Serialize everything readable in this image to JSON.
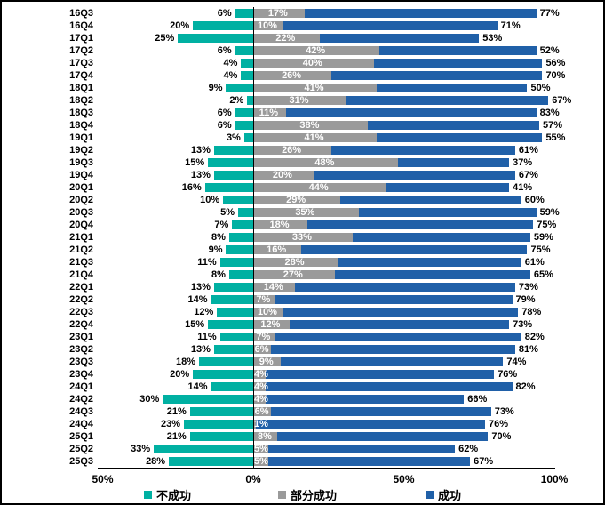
{
  "chart_data": {
    "type": "bar",
    "variant": "horizontal-diverging-stacked",
    "value_suffix": "%",
    "categories": [
      "16Q3",
      "16Q4",
      "17Q1",
      "17Q2",
      "17Q3",
      "17Q4",
      "18Q1",
      "18Q2",
      "18Q3",
      "18Q4",
      "19Q1",
      "19Q2",
      "19Q3",
      "19Q4",
      "20Q1",
      "20Q2",
      "20Q3",
      "20Q4",
      "21Q1",
      "21Q2",
      "21Q3",
      "21Q4",
      "22Q1",
      "22Q2",
      "22Q3",
      "22Q4",
      "23Q1",
      "23Q2",
      "23Q3",
      "23Q4",
      "24Q1",
      "24Q2",
      "24Q3",
      "24Q4",
      "25Q1",
      "25Q2",
      "25Q3"
    ],
    "series": [
      {
        "name": "不成功",
        "color": "#00B0A2",
        "direction": "left",
        "values": [
          6,
          20,
          25,
          6,
          4,
          4,
          9,
          2,
          6,
          6,
          3,
          13,
          15,
          13,
          16,
          10,
          5,
          7,
          8,
          9,
          11,
          8,
          13,
          14,
          12,
          15,
          11,
          13,
          18,
          20,
          14,
          30,
          21,
          23,
          21,
          33,
          28
        ]
      },
      {
        "name": "部分成功",
        "color": "#9A9A9A",
        "direction": "right",
        "values": [
          17,
          10,
          22,
          42,
          40,
          26,
          41,
          31,
          11,
          38,
          41,
          26,
          48,
          20,
          44,
          29,
          35,
          18,
          33,
          16,
          28,
          27,
          14,
          7,
          10,
          12,
          7,
          6,
          9,
          4,
          4,
          4,
          6,
          1,
          8,
          5,
          5
        ]
      },
      {
        "name": "成功",
        "color": "#2060A8",
        "direction": "right",
        "values": [
          77,
          71,
          53,
          52,
          56,
          70,
          50,
          67,
          83,
          57,
          55,
          61,
          37,
          67,
          41,
          60,
          59,
          75,
          59,
          75,
          61,
          65,
          73,
          79,
          78,
          73,
          82,
          81,
          74,
          76,
          82,
          66,
          73,
          76,
          70,
          62,
          67
        ]
      }
    ],
    "x_axis": {
      "ticks": [
        {
          "label": "50%",
          "value": -50
        },
        {
          "label": "0%",
          "value": 0
        },
        {
          "label": "50%",
          "value": 50
        },
        {
          "label": "100%",
          "value": 100
        }
      ],
      "range": [
        -50,
        100
      ],
      "grid": false
    },
    "legend": {
      "position": "bottom"
    },
    "colors": {
      "axis": "#000000",
      "background": "#ffffff",
      "mid_label_text": "#ffffff"
    }
  }
}
